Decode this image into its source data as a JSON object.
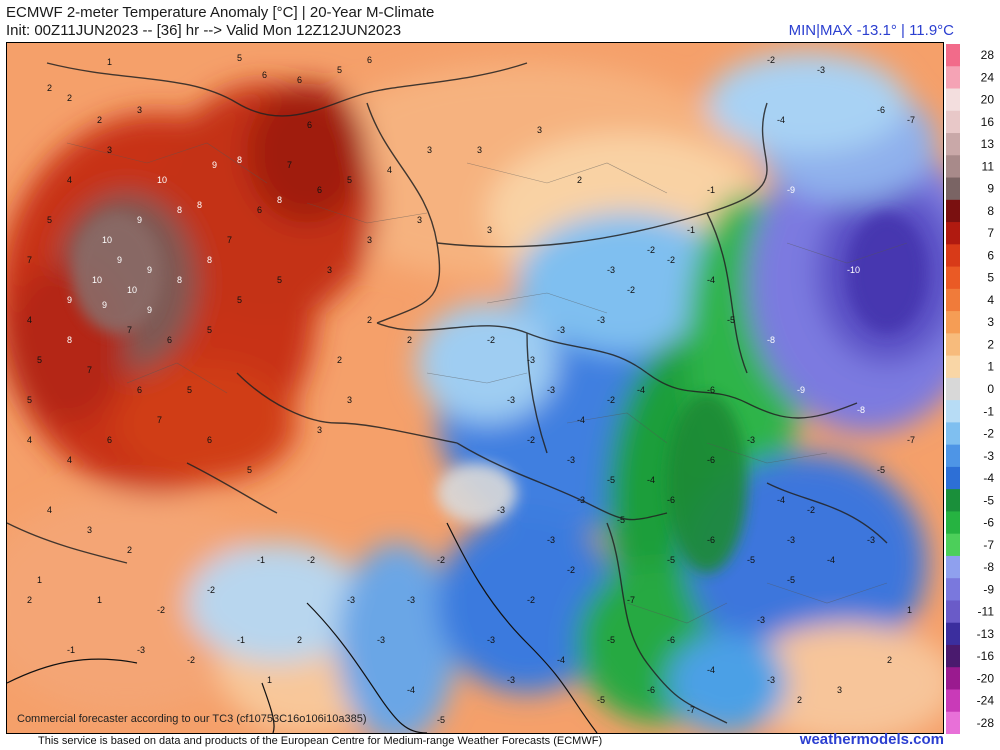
{
  "header": {
    "title_line1": "ECMWF 2-meter Temperature Anomaly [°C] | 20-Year M-Climate",
    "title_line2": "Init: 00Z11JUN2023 -- [36] hr --> Valid Mon 12Z12JUN2023",
    "minmax": "MIN|MAX -13.1° | 11.9°C"
  },
  "legend": {
    "labels": [
      "28",
      "24",
      "20",
      "16",
      "13",
      "11",
      "9",
      "8",
      "7",
      "6",
      "5",
      "4",
      "3",
      "2",
      "1",
      "0",
      "-1",
      "-2",
      "-3",
      "-4",
      "-5",
      "-6",
      "-7",
      "-8",
      "-9",
      "-11",
      "-13",
      "-16",
      "-20",
      "-24",
      "-28"
    ],
    "colors": [
      "#f26b8a",
      "#f5a3b5",
      "#f3dede",
      "#e8c8c8",
      "#c9a8a8",
      "#a88a8a",
      "#7a6464",
      "#7a1010",
      "#b01a10",
      "#d83a18",
      "#ea5a25",
      "#f07b3a",
      "#f59d55",
      "#f7bb7c",
      "#f9d6a6",
      "#d8d8d8",
      "#b7dcf5",
      "#7fbff0",
      "#4e95e6",
      "#2d6fd6",
      "#1a8f3a",
      "#26b341",
      "#4ccf5a",
      "#8fa0ee",
      "#7a78dd",
      "#6a5bc8",
      "#3b2e9e",
      "#4a1a6e",
      "#9a1a8f",
      "#c93ab8",
      "#e870d8"
    ]
  },
  "map": {
    "labels": [
      {
        "t": "1"
      },
      {
        "t": "2"
      },
      {
        "t": "3"
      },
      {
        "t": "5"
      },
      {
        "t": "6"
      },
      {
        "t": "7"
      },
      {
        "t": "8"
      },
      {
        "t": "9"
      },
      {
        "t": "10"
      },
      {
        "t": "-1"
      },
      {
        "t": "-2"
      },
      {
        "t": "-3"
      },
      {
        "t": "-4"
      },
      {
        "t": "-5"
      },
      {
        "t": "-6"
      },
      {
        "t": "-7"
      },
      {
        "t": "-8"
      },
      {
        "t": "-9"
      },
      {
        "t": "-10"
      }
    ],
    "disclaimer": "Commercial forecaster according to our TC3 (cf10753C16o106i10a385)"
  },
  "footer": {
    "text": "This service is based on data and products of the European Centre for Medium-range Weather Forecasts (ECMWF)",
    "brand": "weathermodels.com"
  }
}
